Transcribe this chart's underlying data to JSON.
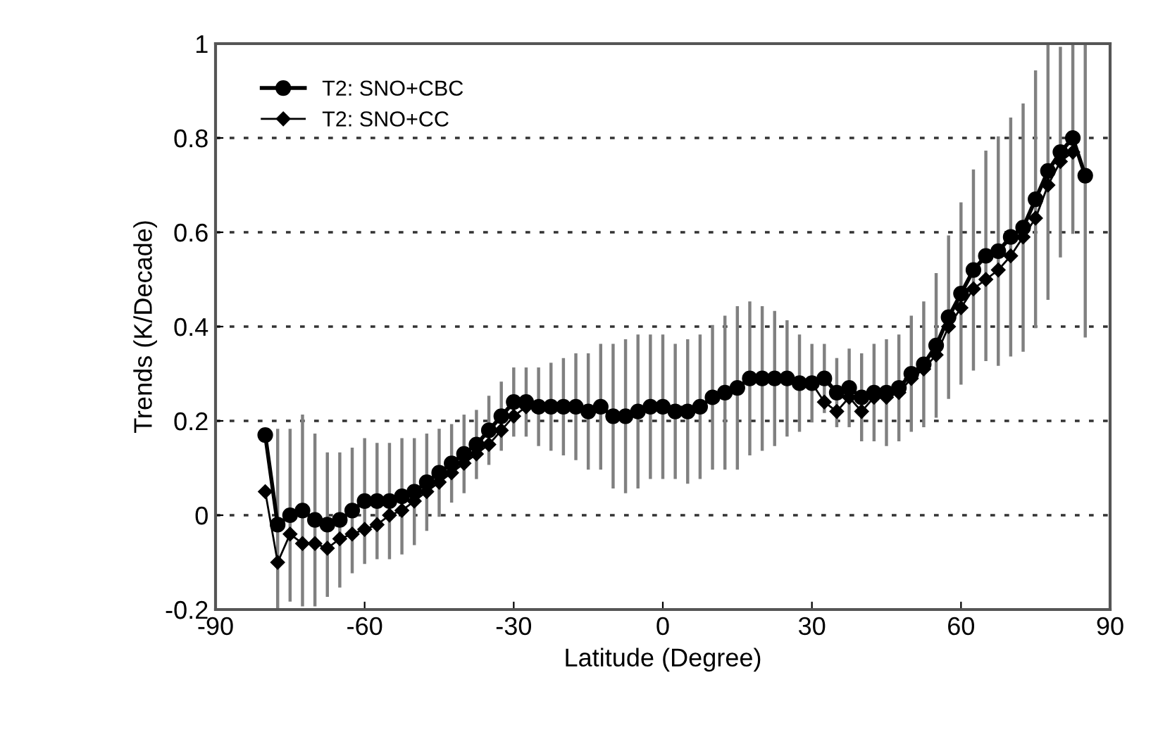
{
  "chart_data": {
    "type": "line",
    "xlabel": "Latitude (Degree)",
    "ylabel": "Trends (K/Decade)",
    "x": [
      -80,
      -77.5,
      -75,
      -72.5,
      -70,
      -67.5,
      -65,
      -62.5,
      -60,
      -57.5,
      -55,
      -52.5,
      -50,
      -47.5,
      -45,
      -42.5,
      -40,
      -37.5,
      -35,
      -32.5,
      -30,
      -27.5,
      -25,
      -22.5,
      -20,
      -17.5,
      -15,
      -12.5,
      -10,
      -7.5,
      -5,
      -2.5,
      0,
      2.5,
      5,
      7.5,
      10,
      12.5,
      15,
      17.5,
      20,
      22.5,
      25,
      27.5,
      30,
      32.5,
      35,
      37.5,
      40,
      42.5,
      45,
      47.5,
      50,
      52.5,
      55,
      57.5,
      60,
      62.5,
      65,
      67.5,
      70,
      72.5,
      75,
      77.5,
      80,
      82.5,
      85
    ],
    "series": [
      {
        "name": "T2: SNO+CBC",
        "color": "#000000",
        "marker": "circle",
        "values": [
          0.17,
          -0.02,
          0.0,
          0.01,
          -0.01,
          -0.02,
          -0.01,
          0.01,
          0.03,
          0.03,
          0.03,
          0.04,
          0.05,
          0.07,
          0.09,
          0.11,
          0.13,
          0.15,
          0.18,
          0.21,
          0.24,
          0.24,
          0.23,
          0.23,
          0.23,
          0.23,
          0.22,
          0.23,
          0.21,
          0.21,
          0.22,
          0.23,
          0.23,
          0.22,
          0.22,
          0.23,
          0.25,
          0.26,
          0.27,
          0.29,
          0.29,
          0.29,
          0.29,
          0.28,
          0.28,
          0.29,
          0.26,
          0.27,
          0.25,
          0.26,
          0.26,
          0.27,
          0.3,
          0.32,
          0.36,
          0.42,
          0.47,
          0.52,
          0.55,
          0.56,
          0.59,
          0.61,
          0.67,
          0.73,
          0.77,
          0.8,
          0.72
        ],
        "errors": [
          null,
          0.2,
          0.18,
          0.2,
          0.18,
          0.15,
          0.14,
          0.13,
          0.13,
          0.12,
          0.12,
          0.12,
          0.11,
          0.1,
          0.09,
          0.08,
          0.08,
          0.07,
          0.07,
          0.07,
          0.07,
          0.07,
          0.08,
          0.09,
          0.1,
          0.11,
          0.12,
          0.13,
          0.15,
          0.16,
          0.16,
          0.15,
          0.15,
          0.14,
          0.15,
          0.15,
          0.15,
          0.16,
          0.17,
          0.16,
          0.15,
          0.14,
          0.12,
          0.1,
          0.08,
          0.07,
          0.07,
          0.08,
          0.09,
          0.1,
          0.11,
          0.11,
          0.12,
          0.13,
          0.15,
          0.17,
          0.19,
          0.21,
          0.22,
          0.24,
          0.25,
          0.26,
          0.27,
          0.27,
          0.22,
          0.2,
          0.34
        ]
      },
      {
        "name": "T2: SNO+CC",
        "color": "#000000",
        "marker": "diamond",
        "values": [
          0.05,
          -0.1,
          -0.04,
          -0.06,
          -0.06,
          -0.07,
          -0.05,
          -0.04,
          -0.03,
          -0.02,
          0.0,
          0.01,
          0.03,
          0.05,
          0.07,
          0.09,
          0.11,
          0.13,
          0.15,
          0.18,
          0.21,
          0.23,
          0.23,
          0.23,
          0.23,
          0.23,
          0.22,
          0.23,
          0.21,
          0.21,
          0.22,
          0.23,
          0.23,
          null,
          null,
          0.23,
          0.25,
          0.26,
          0.27,
          0.29,
          null,
          null,
          0.29,
          0.28,
          0.28,
          0.24,
          0.22,
          0.25,
          0.22,
          0.25,
          0.25,
          0.26,
          0.29,
          0.31,
          0.34,
          0.4,
          0.44,
          0.48,
          0.5,
          0.52,
          0.55,
          0.59,
          0.63,
          0.7,
          0.75,
          0.77,
          null
        ]
      }
    ],
    "xlim": [
      -90,
      90
    ],
    "xticks": [
      -90,
      -60,
      -30,
      0,
      30,
      60,
      90
    ],
    "ylim": [
      -0.2,
      1
    ],
    "yticks": [
      -0.2,
      0,
      0.2,
      0.4,
      0.6,
      0.8,
      1
    ],
    "grid": "y",
    "legend": "top left"
  }
}
